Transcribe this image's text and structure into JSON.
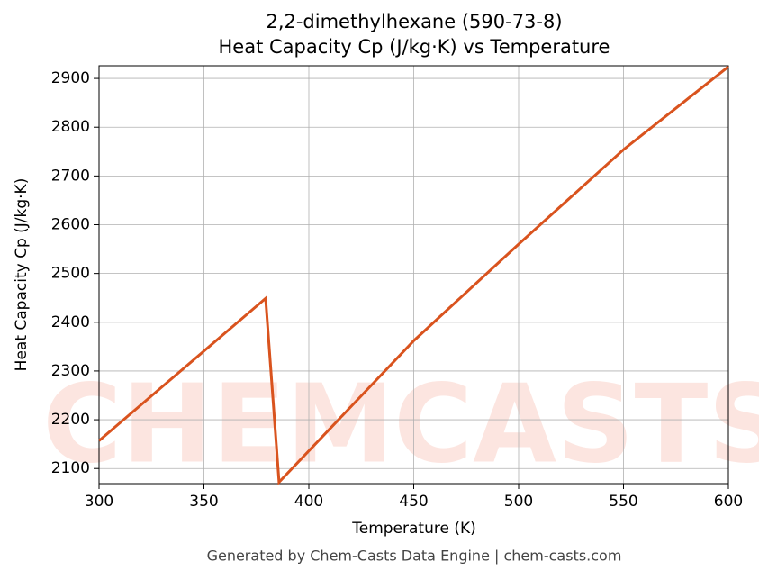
{
  "chart_data": {
    "type": "line",
    "title": "2,2-dimethylhexane (590-73-8)",
    "subtitle": "Heat Capacity Cp (J/kg·K) vs Temperature",
    "x_label": "Temperature (K)",
    "y_label": "Heat Capacity Cp (J/kg·K)",
    "footer": "Generated by Chem-Casts Data Engine | chem-casts.com",
    "watermark": "CHEMCASTS",
    "x": [
      300,
      379.4,
      385.8,
      450,
      500,
      550,
      600
    ],
    "series": [
      {
        "name": "Heat Capacity Cp",
        "color": "#d9531e",
        "values": [
          2157,
          2449,
          2072,
          2362,
          2560,
          2754,
          2924
        ]
      }
    ],
    "xlim": [
      300,
      600
    ],
    "xticks": [
      300,
      350,
      400,
      450,
      500,
      550,
      600
    ],
    "ylim": [
      2069,
      2926
    ],
    "yticks": [
      2100,
      2200,
      2300,
      2400,
      2500,
      2600,
      2700,
      2800,
      2900
    ],
    "grid": true
  }
}
